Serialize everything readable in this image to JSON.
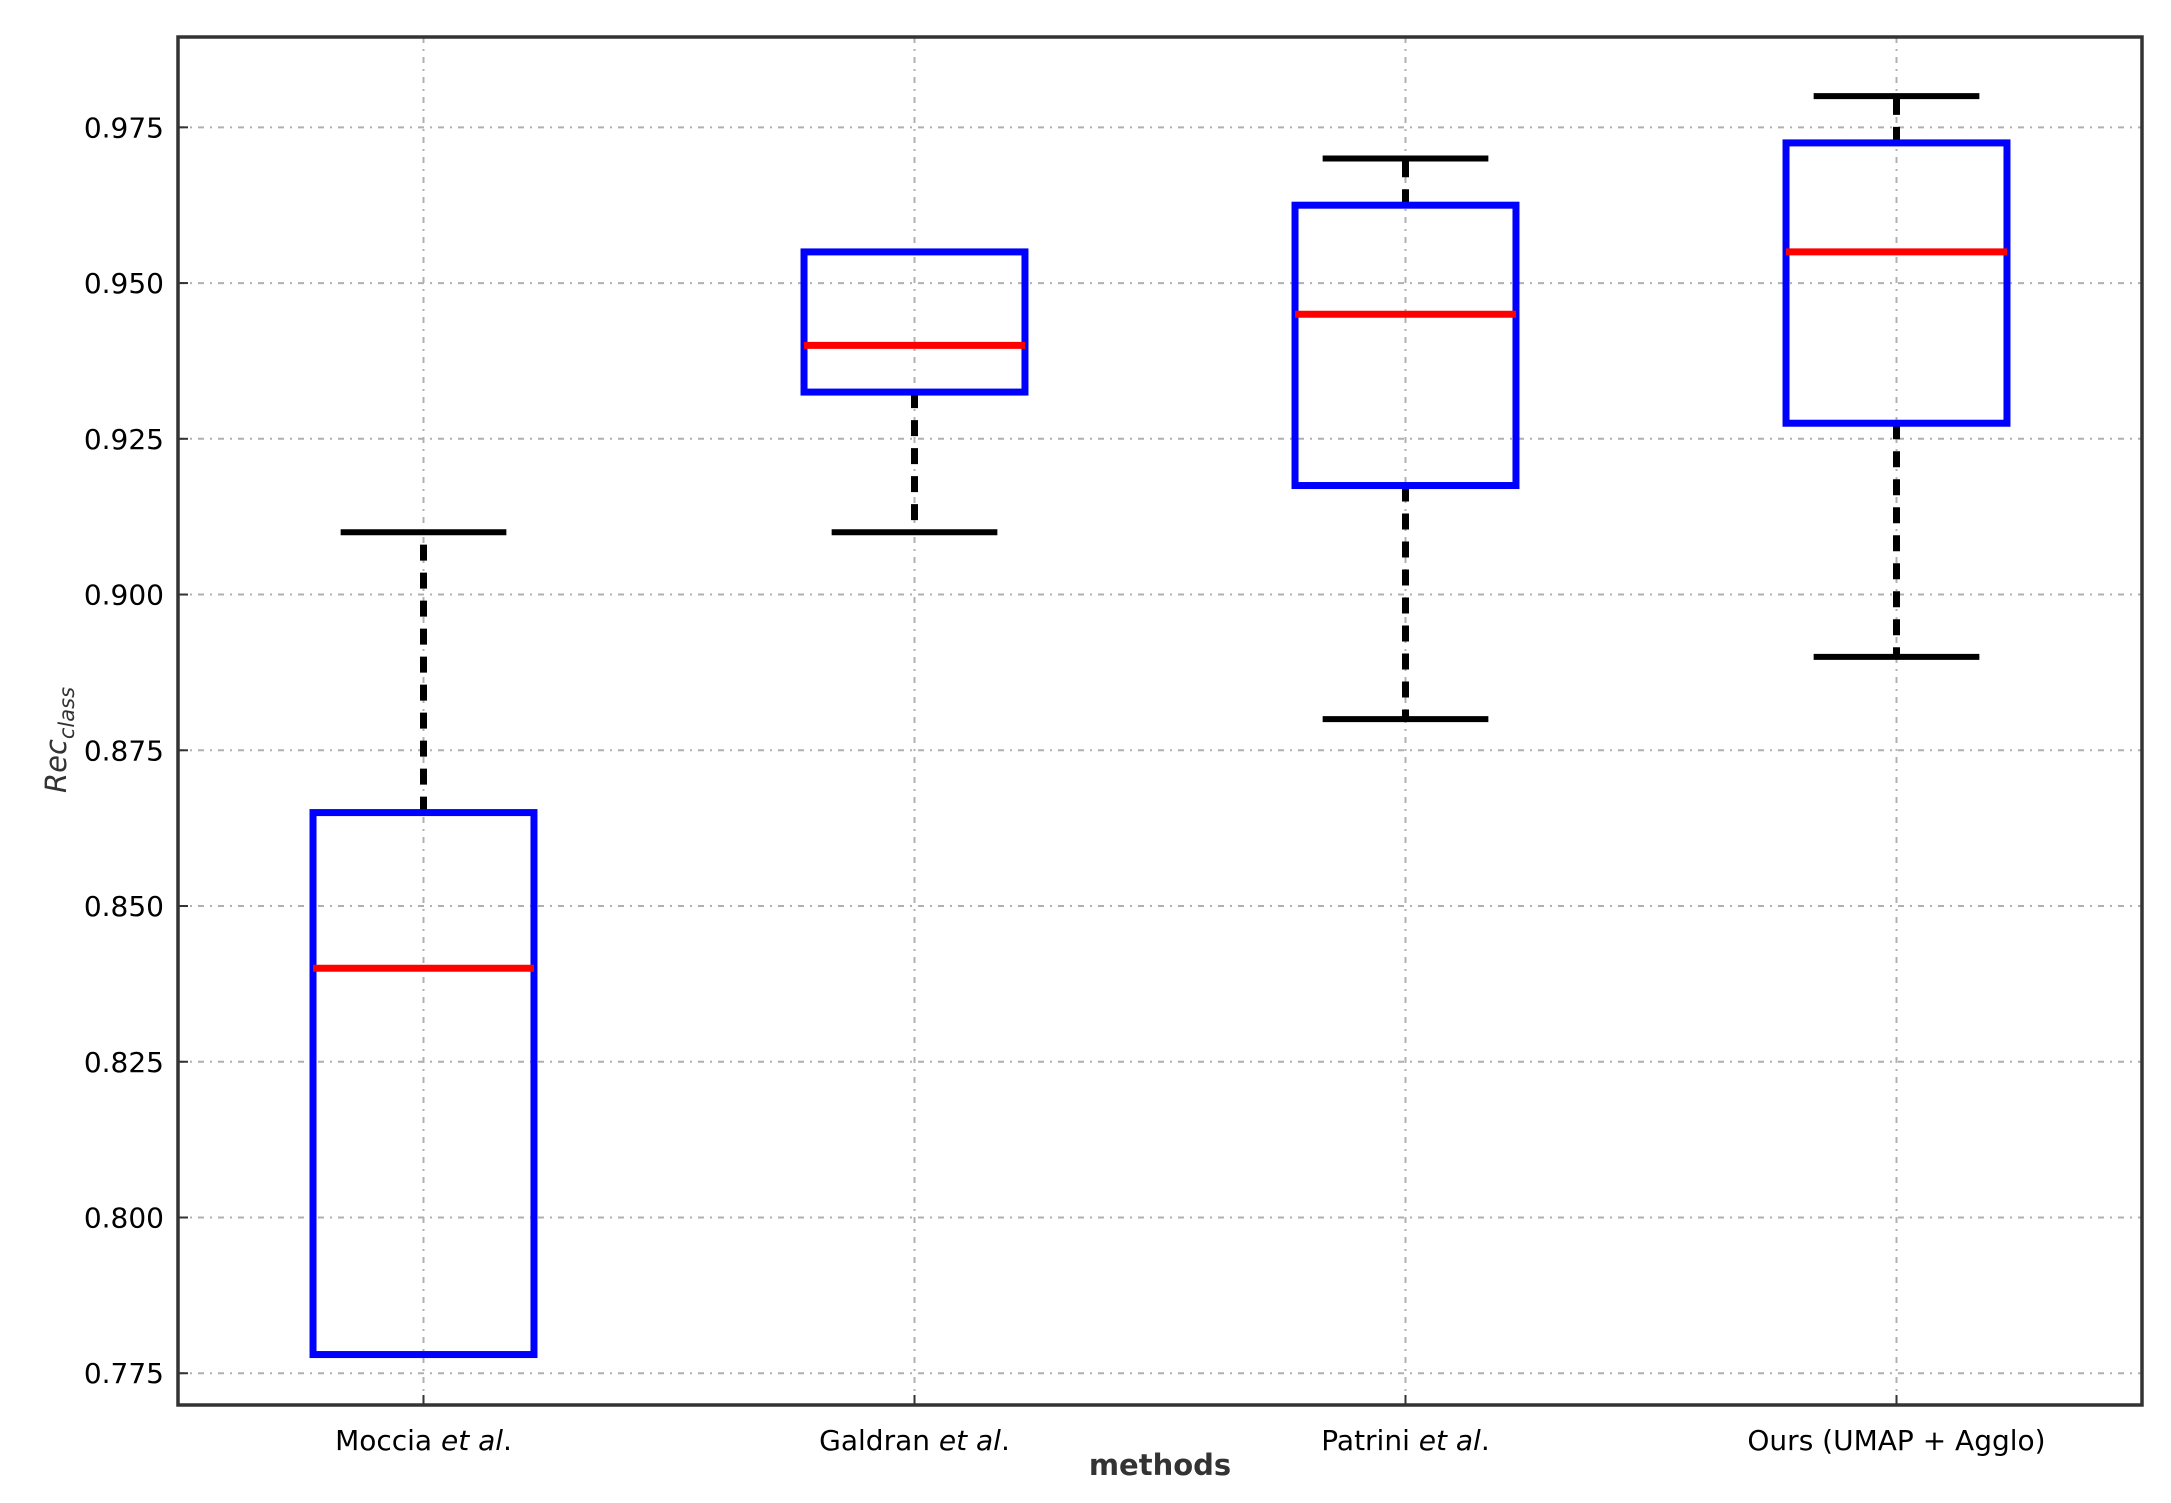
{
  "chart_data": {
    "type": "box",
    "xlabel": "methods",
    "ylabel": {
      "base": "Rec",
      "subscript": "class"
    },
    "ylim": [
      0.7699,
      0.9895
    ],
    "yticks": [
      0.775,
      0.8,
      0.825,
      0.85,
      0.875,
      0.9,
      0.925,
      0.95,
      0.975
    ],
    "ytick_labels": [
      "0.775",
      "0.800",
      "0.825",
      "0.850",
      "0.875",
      "0.900",
      "0.925",
      "0.950",
      "0.975"
    ],
    "grid": true,
    "categories": [
      {
        "plain": "Moccia ",
        "italic": "et al",
        "suffix": "."
      },
      {
        "plain": "Galdran ",
        "italic": "et al",
        "suffix": "."
      },
      {
        "plain": "Patrini ",
        "italic": "et al",
        "suffix": "."
      },
      {
        "plain": "Ours (UMAP + Agglo)",
        "italic": "",
        "suffix": ""
      }
    ],
    "boxes": [
      {
        "whisker_low": 0.778,
        "q1": 0.778,
        "median": 0.84,
        "q3": 0.865,
        "whisker_high": 0.91
      },
      {
        "whisker_low": 0.91,
        "q1": 0.9325,
        "median": 0.94,
        "q3": 0.955,
        "whisker_high": 0.955
      },
      {
        "whisker_low": 0.88,
        "q1": 0.9175,
        "median": 0.945,
        "q3": 0.9625,
        "whisker_high": 0.97
      },
      {
        "whisker_low": 0.89,
        "q1": 0.9275,
        "median": 0.955,
        "q3": 0.9725,
        "whisker_high": 0.98
      }
    ],
    "colors": {
      "box": "#0000ff",
      "median": "#ff0000",
      "whisker": "#000000",
      "grid": "#b0b0b0",
      "frame": "#333333"
    }
  }
}
